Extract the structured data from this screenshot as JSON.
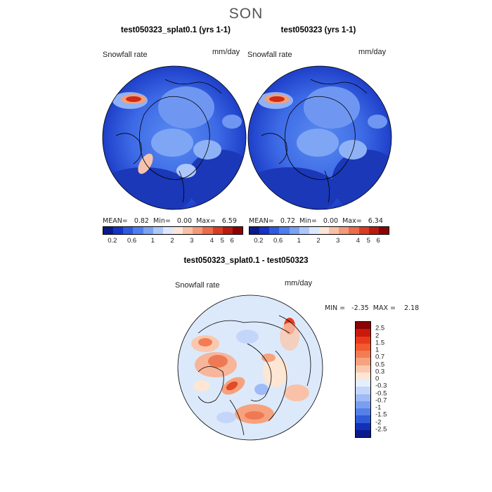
{
  "season": "SON",
  "field_name": "Snowfall rate",
  "units": "mm/day",
  "panels": [
    {
      "title": "test050323_splat0.1 (yrs 1-1)",
      "stats": "MEAN=   0.82  Min=   0.00  Max=   6.59"
    },
    {
      "title": "test050323 (yrs 1-1)",
      "stats": "MEAN=   0.72  Min=   0.00  Max=   6.34"
    }
  ],
  "abs_colorbar": {
    "ticks": [
      "0.2",
      "0.6",
      "1",
      "2",
      "3",
      "4",
      "5",
      "6"
    ],
    "colors": [
      "#0a1a8c",
      "#1533c4",
      "#2d5ae0",
      "#4f7ef0",
      "#7ca2f4",
      "#aec7fa",
      "#dde8fd",
      "#fde6d8",
      "#f8c0a6",
      "#f49a79",
      "#ec6c4b",
      "#dc3c24",
      "#bb1b0c",
      "#8b0304"
    ]
  },
  "diff": {
    "title": "test050323_splat0.1 - test050323",
    "stats": "MIN =   -2.35  MAX =    2.18",
    "levels": [
      "2.5",
      "2",
      "1.5",
      "1",
      "0.7",
      "0.5",
      "0.3",
      "0",
      "-0.3",
      "-0.5",
      "-0.7",
      "-1",
      "-1.5",
      "-2",
      "-2.5"
    ],
    "colors": [
      "#8b0304",
      "#c81a0c",
      "#e83a1a",
      "#f25a30",
      "#f47c55",
      "#f7a27e",
      "#fac8ae",
      "#fde6d4",
      "#e4eefd",
      "#c3d6fa",
      "#9fbbf5",
      "#7a9ff1",
      "#5580e9",
      "#2f5bd8",
      "#1230b8",
      "#0a1a8c"
    ]
  },
  "colors": {
    "ocean_blue": "#2f58d8",
    "diff_bg": "#dce9fb"
  }
}
